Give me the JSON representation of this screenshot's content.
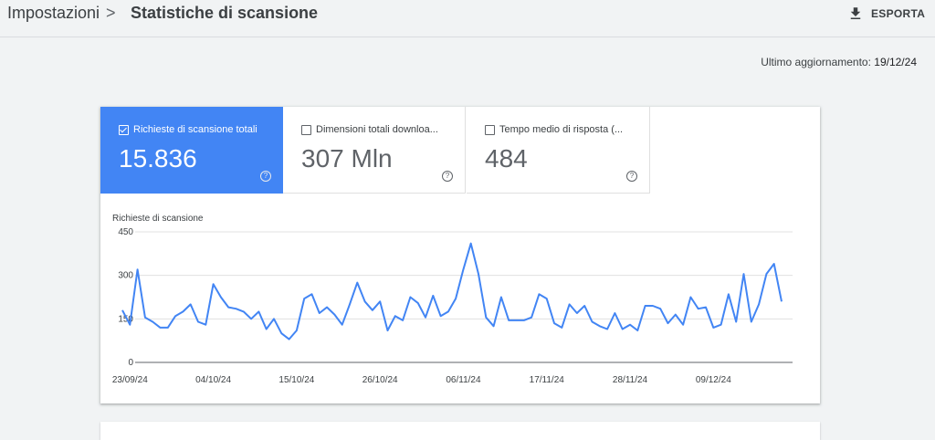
{
  "header": {
    "breadcrumb_root": "Impostazioni",
    "breadcrumb_separator": ">",
    "title": "Statistiche di scansione",
    "export_label": "ESPORTA",
    "export_icon": "download-icon"
  },
  "last_update": {
    "label": "Ultimo aggiornamento:",
    "date": "19/12/24"
  },
  "metrics": [
    {
      "label": "Richieste di scansione totali",
      "value": "15.836",
      "selected": true,
      "help_icon": "help-circle-icon"
    },
    {
      "label": "Dimensioni totali downloa...",
      "value": "307 Mln",
      "selected": false,
      "help_icon": "help-circle-icon"
    },
    {
      "label": "Tempo medio di risposta (...",
      "value": "484",
      "selected": false,
      "help_icon": "help-circle-icon"
    }
  ],
  "colors": {
    "accent": "#4285f4",
    "line": "#4285f4",
    "grid": "#e0e0e0"
  },
  "chart_data": {
    "type": "line",
    "ylabel": "Richieste di scansione",
    "xlabel": "",
    "ylim": [
      0,
      450
    ],
    "yticks": [
      0,
      150,
      300,
      450
    ],
    "xticks": [
      "23/09/24",
      "04/10/24",
      "15/10/24",
      "26/10/24",
      "06/11/24",
      "17/11/24",
      "28/11/24",
      "09/12/24"
    ],
    "x_start": "2024-09-22",
    "x_end": "2024-12-19",
    "grid": true,
    "series": [
      {
        "name": "Richieste di scansione totali",
        "values": [
          180,
          130,
          320,
          155,
          140,
          120,
          120,
          160,
          175,
          200,
          140,
          130,
          270,
          225,
          190,
          185,
          175,
          150,
          175,
          115,
          150,
          100,
          80,
          110,
          220,
          235,
          170,
          190,
          165,
          130,
          200,
          275,
          210,
          180,
          210,
          110,
          160,
          145,
          225,
          205,
          155,
          230,
          160,
          175,
          220,
          320,
          410,
          305,
          155,
          125,
          225,
          145,
          145,
          145,
          155,
          235,
          220,
          135,
          120,
          200,
          170,
          195,
          140,
          125,
          115,
          170,
          115,
          130,
          110,
          195,
          195,
          185,
          135,
          165,
          130,
          225,
          185,
          190,
          120,
          130,
          235,
          140,
          305,
          140,
          200,
          305,
          340,
          210
        ]
      }
    ]
  }
}
